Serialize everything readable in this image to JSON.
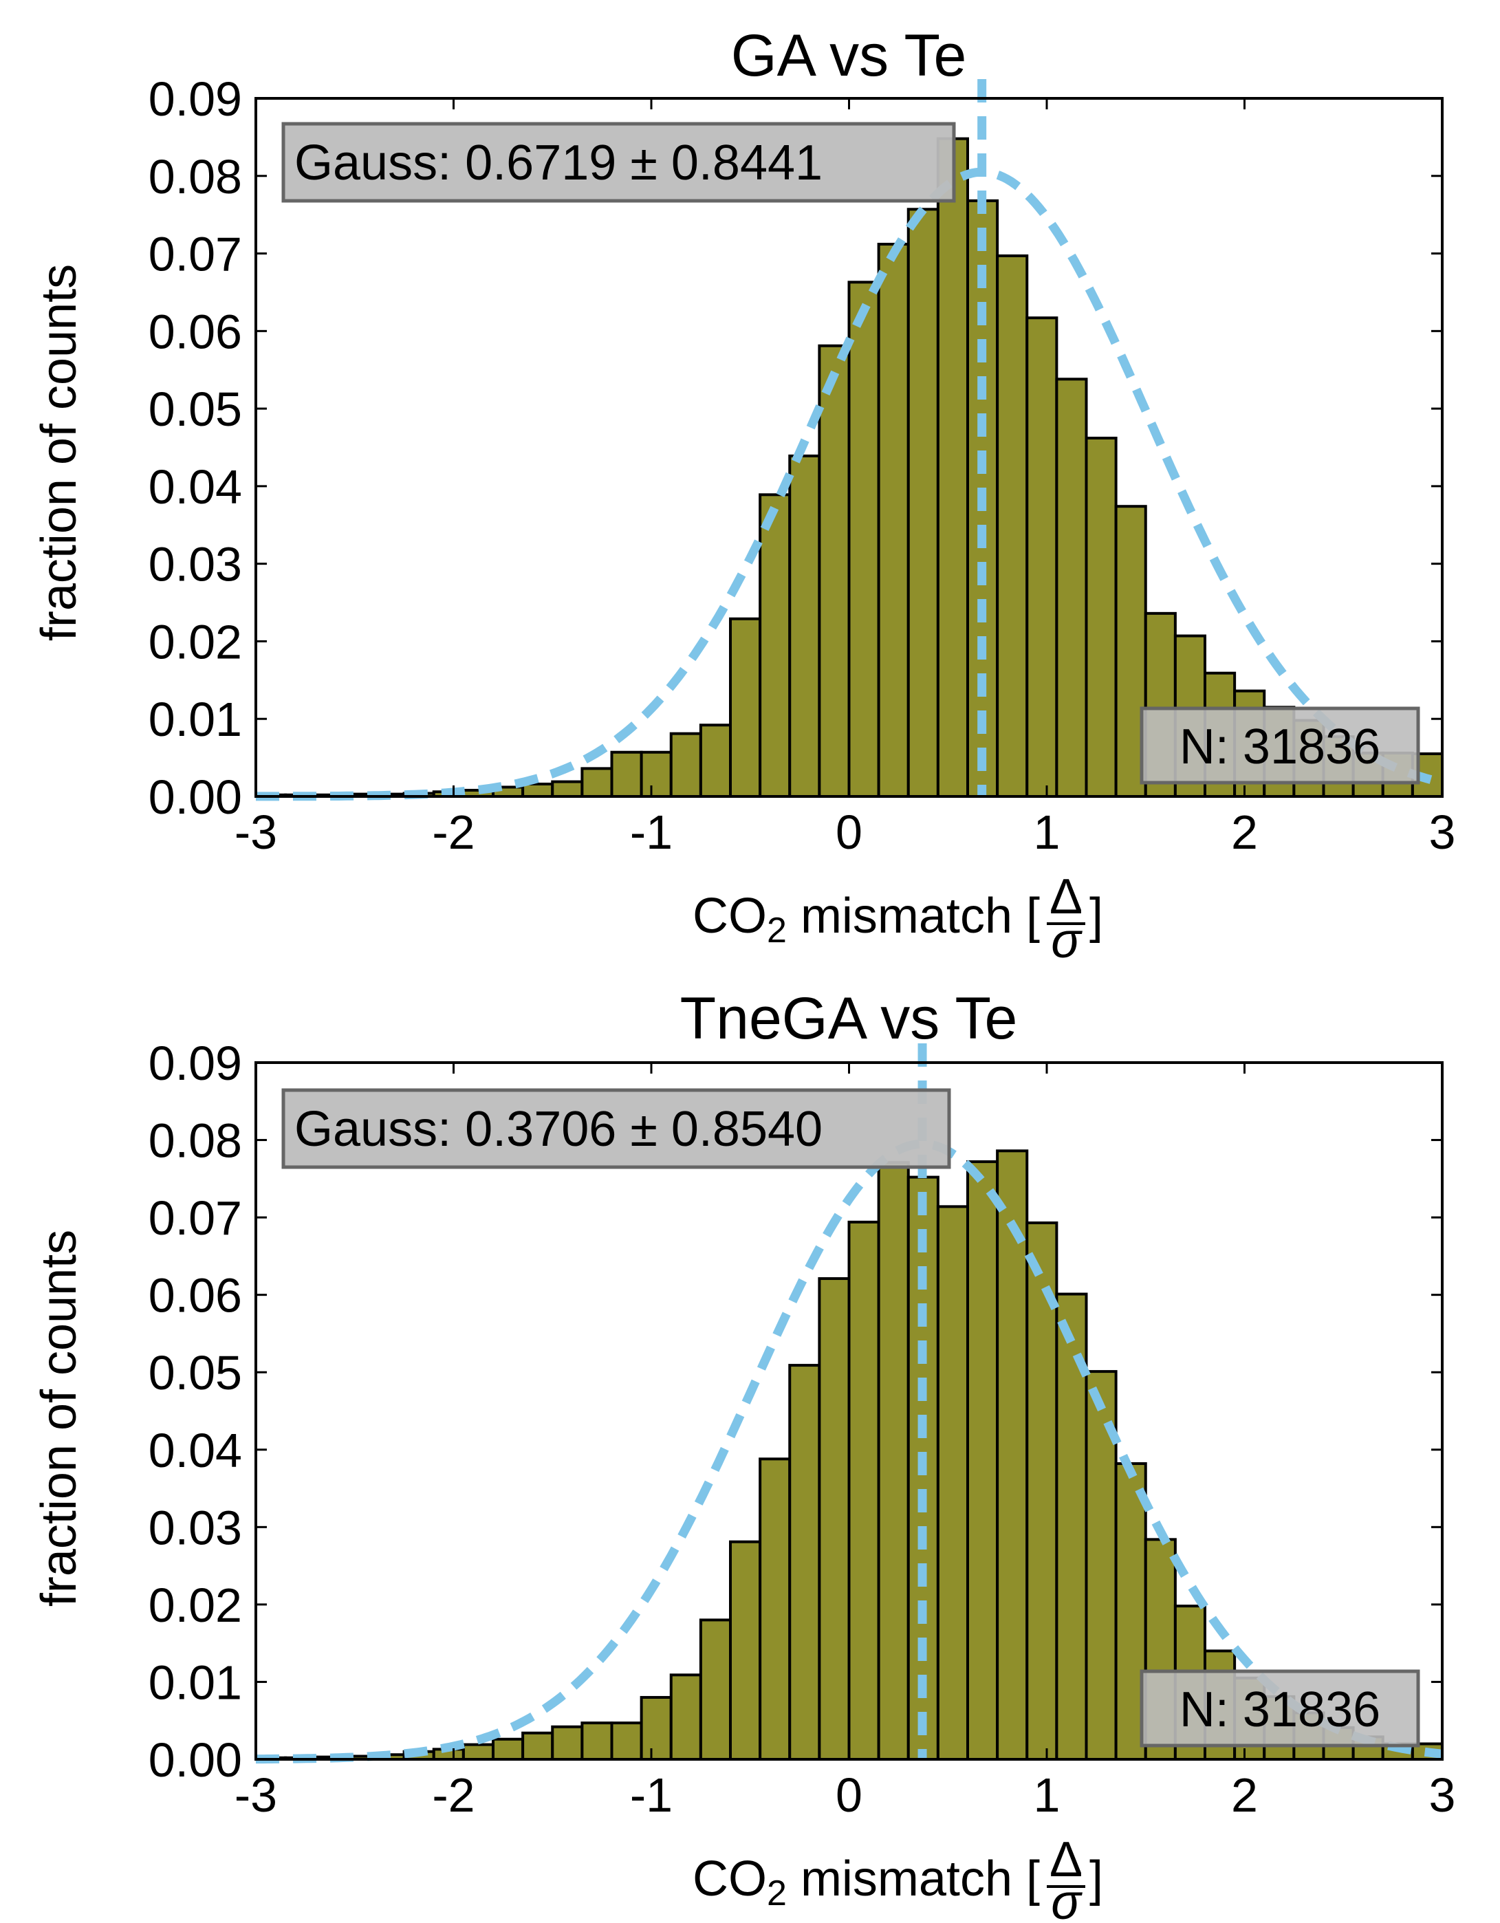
{
  "colors": {
    "bar_fill": "#8f8f2b",
    "bar_edge": "#000000",
    "fit_line": "#7ec4e8",
    "textbox_fill": "#bdbdbd",
    "textbox_edge": "#666666"
  },
  "chart_data": [
    {
      "type": "bar",
      "title": "GA vs Te",
      "xlabel": "CO₂ mismatch [Δ/σ]",
      "xlabel_parts": {
        "pre": "CO",
        "sub": "2",
        "post": " mismatch [",
        "frac_num": "Δ",
        "frac_den": "σ",
        "close": "]"
      },
      "ylabel": "fraction of counts",
      "xlim": [
        -3,
        3
      ],
      "ylim": [
        0,
        0.09
      ],
      "xticks": [
        -3,
        -2,
        -1,
        0,
        1,
        2,
        3
      ],
      "xtick_labels": [
        "-3",
        "-2",
        "-1",
        "0",
        "1",
        "2",
        "3"
      ],
      "yticks": [
        0,
        0.01,
        0.02,
        0.03,
        0.04,
        0.05,
        0.06,
        0.07,
        0.08,
        0.09
      ],
      "ytick_labels": [
        "0.00",
        "0.01",
        "0.02",
        "0.03",
        "0.04",
        "0.05",
        "0.06",
        "0.07",
        "0.08",
        "0.09"
      ],
      "grid": false,
      "bin_edges": [
        -3.0,
        -2.85,
        -2.7,
        -2.55,
        -2.4,
        -2.25,
        -2.1,
        -1.95,
        -1.8,
        -1.65,
        -1.5,
        -1.35,
        -1.2,
        -1.05,
        -0.9,
        -0.75,
        -0.6,
        -0.45,
        -0.3,
        -0.15,
        0.0,
        0.15,
        0.3,
        0.45,
        0.6,
        0.75,
        0.9,
        1.05,
        1.2,
        1.35,
        1.5,
        1.65,
        1.8,
        1.95,
        2.1,
        2.25,
        2.4,
        2.55,
        2.7,
        2.85,
        3.0
      ],
      "values": [
        0.0002,
        0.0002,
        0.0002,
        0.0003,
        0.0003,
        0.0004,
        0.0006,
        0.0008,
        0.0012,
        0.0016,
        0.0019,
        0.0036,
        0.0057,
        0.0057,
        0.0081,
        0.0092,
        0.0229,
        0.0389,
        0.0439,
        0.0581,
        0.0663,
        0.0712,
        0.0757,
        0.0848,
        0.0768,
        0.0697,
        0.0617,
        0.0538,
        0.0462,
        0.0374,
        0.0236,
        0.0207,
        0.0159,
        0.0136,
        0.0115,
        0.0098,
        0.0077,
        0.0056,
        0.0056,
        0.0055
      ],
      "fit": {
        "type": "gaussian",
        "mean": 0.6719,
        "sigma": 0.8441,
        "peak": 0.0805
      },
      "mean_line_x": 0.6719,
      "annotations": {
        "gauss_label": "Gauss:",
        "gauss_value": "0.6719 ± 0.8441",
        "n_label": "N: 31836"
      }
    },
    {
      "type": "bar",
      "title": "TneGA vs Te",
      "xlabel": "CO₂ mismatch [Δ/σ]",
      "xlabel_parts": {
        "pre": "CO",
        "sub": "2",
        "post": " mismatch [",
        "frac_num": "Δ",
        "frac_den": "σ",
        "close": "]"
      },
      "ylabel": "fraction of counts",
      "xlim": [
        -3,
        3
      ],
      "ylim": [
        0,
        0.09
      ],
      "xticks": [
        -3,
        -2,
        -1,
        0,
        1,
        2,
        3
      ],
      "xtick_labels": [
        "-3",
        "-2",
        "-1",
        "0",
        "1",
        "2",
        "3"
      ],
      "yticks": [
        0,
        0.01,
        0.02,
        0.03,
        0.04,
        0.05,
        0.06,
        0.07,
        0.08,
        0.09
      ],
      "ytick_labels": [
        "0.00",
        "0.01",
        "0.02",
        "0.03",
        "0.04",
        "0.05",
        "0.06",
        "0.07",
        "0.08",
        "0.09"
      ],
      "grid": false,
      "bin_edges": [
        -3.0,
        -2.85,
        -2.7,
        -2.55,
        -2.4,
        -2.25,
        -2.1,
        -1.95,
        -1.8,
        -1.65,
        -1.5,
        -1.35,
        -1.2,
        -1.05,
        -0.9,
        -0.75,
        -0.6,
        -0.45,
        -0.3,
        -0.15,
        0.0,
        0.15,
        0.3,
        0.45,
        0.6,
        0.75,
        0.9,
        1.05,
        1.2,
        1.35,
        1.5,
        1.65,
        1.8,
        1.95,
        2.1,
        2.25,
        2.4,
        2.55,
        2.7,
        2.85,
        3.0
      ],
      "values": [
        0.0002,
        0.0002,
        0.0003,
        0.0004,
        0.0006,
        0.001,
        0.0013,
        0.0019,
        0.0026,
        0.0034,
        0.0042,
        0.0047,
        0.0047,
        0.008,
        0.0109,
        0.018,
        0.0281,
        0.0388,
        0.0509,
        0.0621,
        0.0694,
        0.0771,
        0.0752,
        0.0714,
        0.0772,
        0.0786,
        0.0693,
        0.0601,
        0.0501,
        0.0382,
        0.0284,
        0.0198,
        0.014,
        0.0105,
        0.0081,
        0.006,
        0.0041,
        0.0029,
        0.002,
        0.002
      ],
      "fit": {
        "type": "gaussian",
        "mean": 0.3706,
        "sigma": 0.854,
        "peak": 0.0795
      },
      "mean_line_x": 0.3706,
      "annotations": {
        "gauss_label": "Gauss:",
        "gauss_value": "0.3706 ± 0.8540",
        "n_label": "N: 31836"
      }
    }
  ]
}
